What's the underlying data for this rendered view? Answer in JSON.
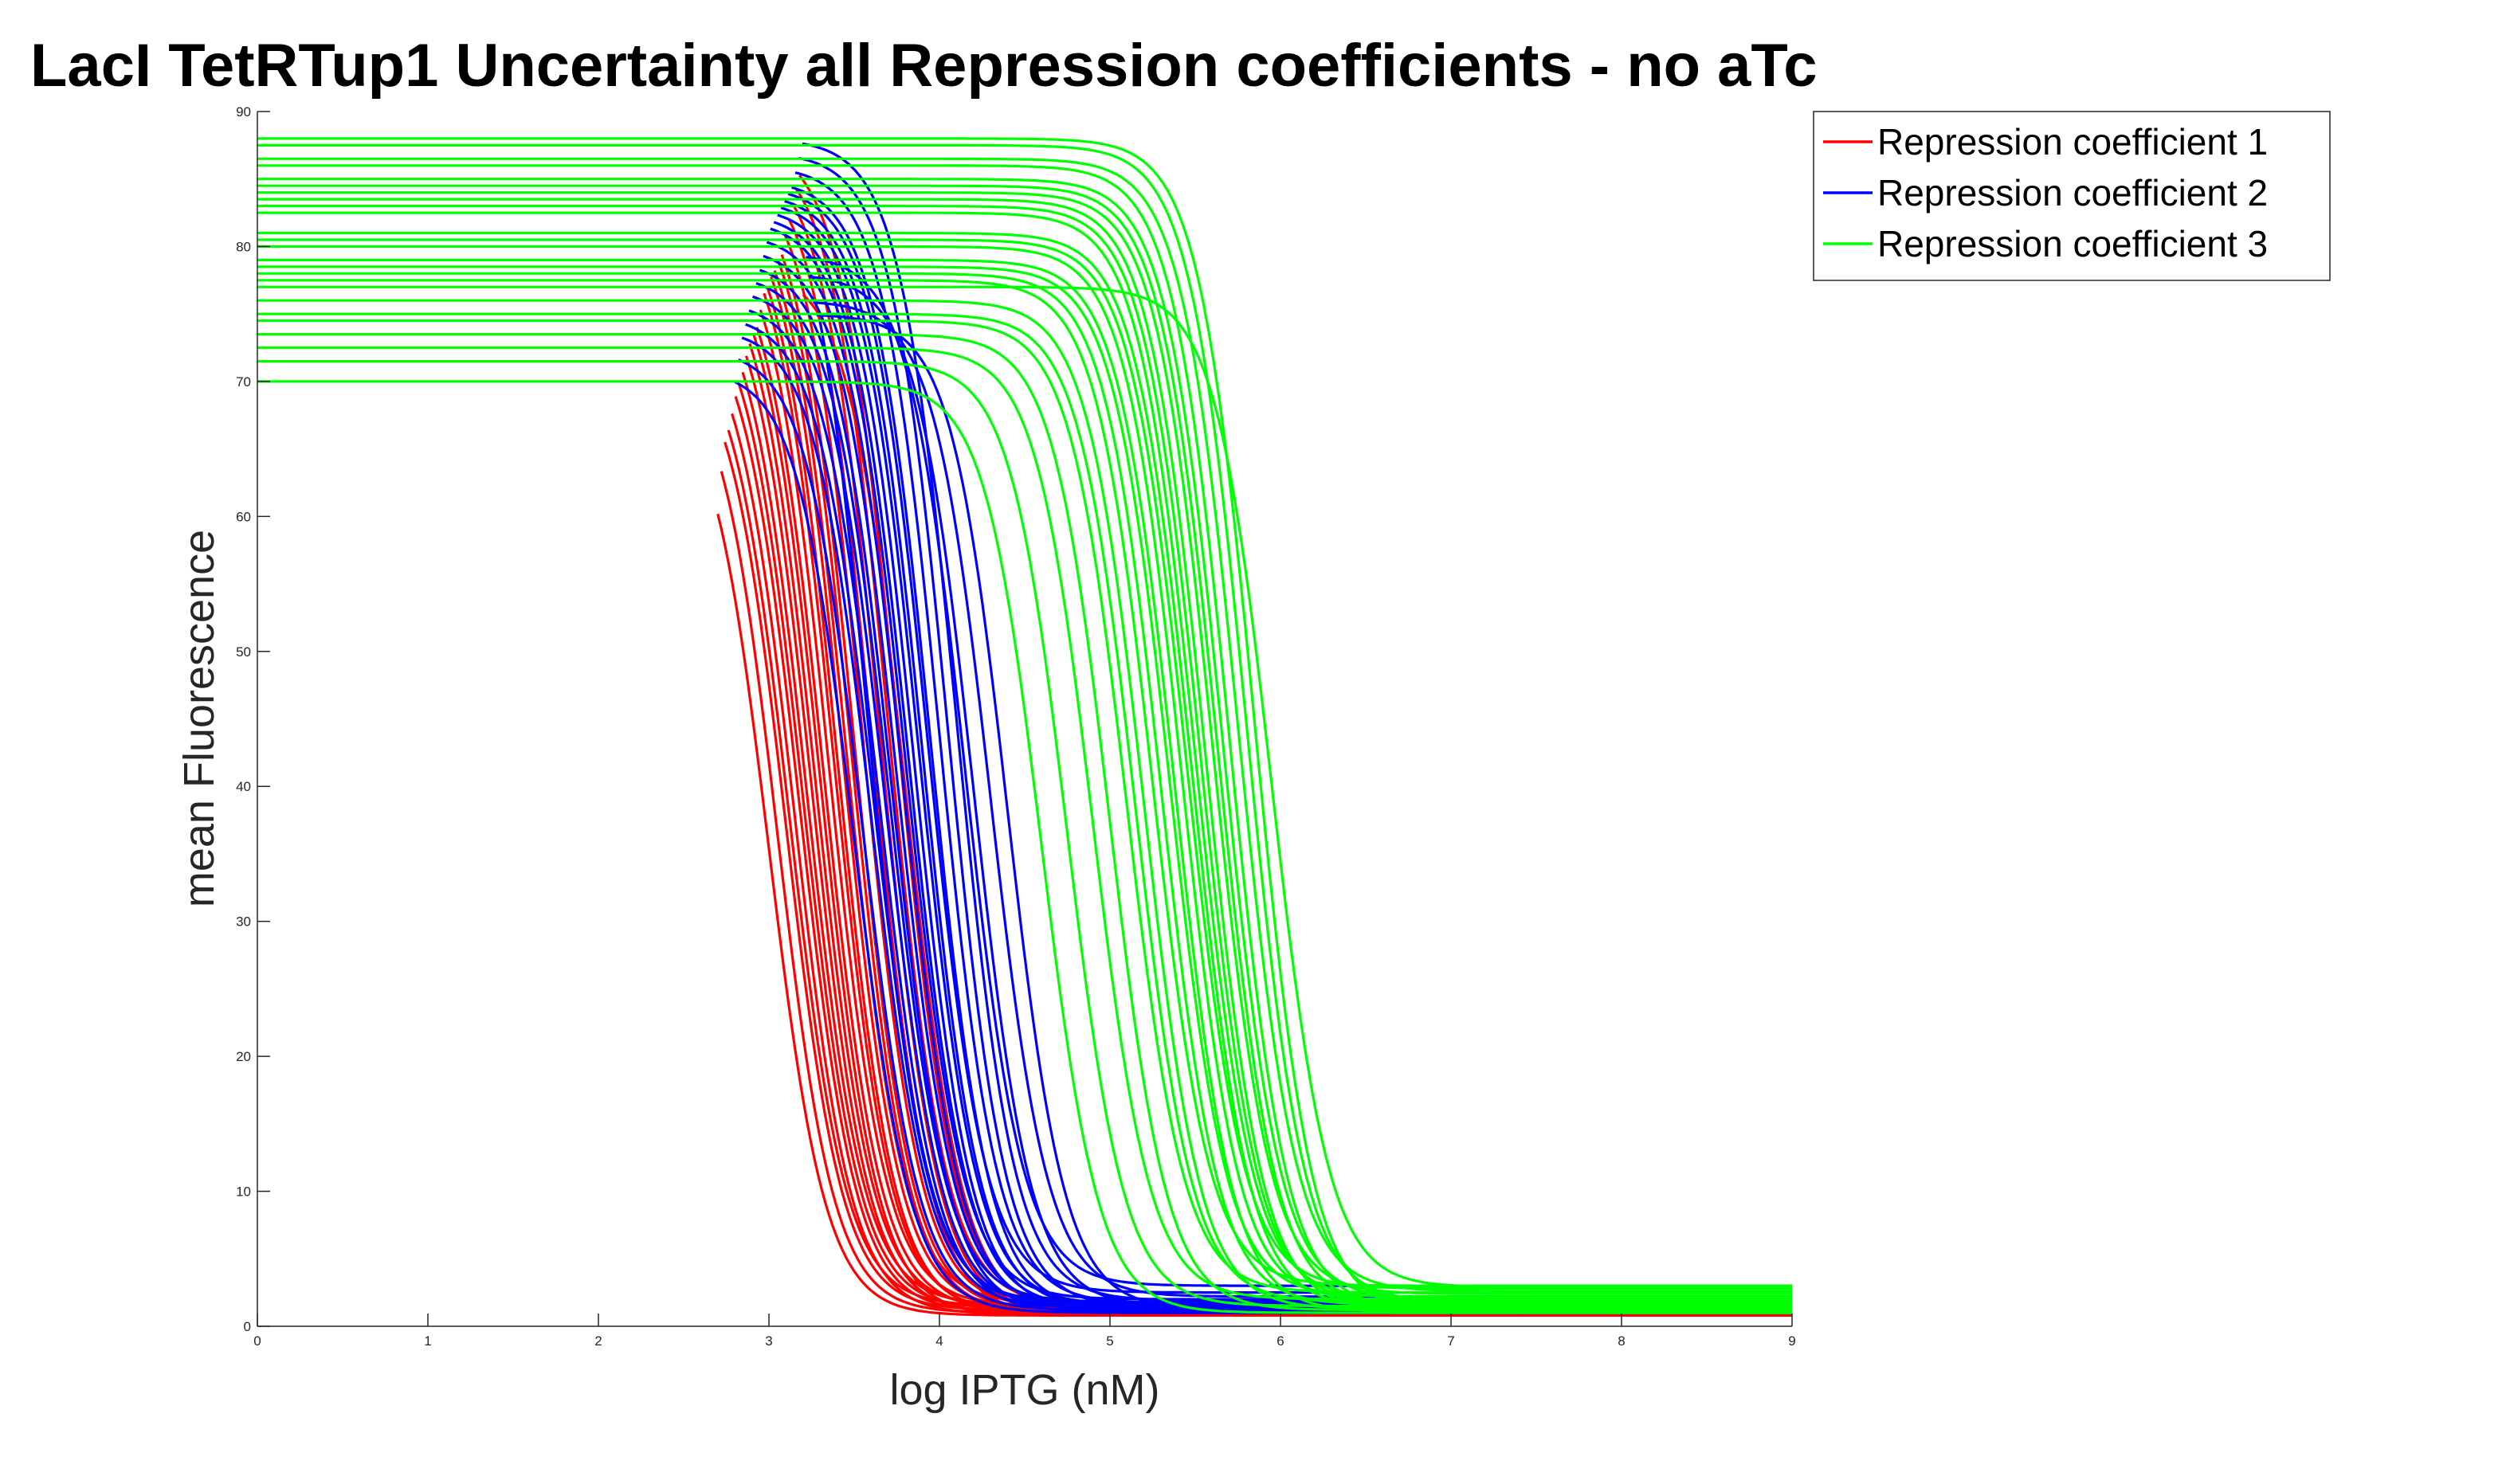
{
  "chart_data": {
    "type": "line",
    "title": "LacI TetRTup1 Uncertainty all Repression coefficients - no aTc",
    "xlabel": "log IPTG (nM)",
    "ylabel": "mean Fluorescence",
    "xlim": [
      0,
      9
    ],
    "ylim": [
      0,
      90
    ],
    "xticks": [
      "0",
      "1",
      "2",
      "3",
      "4",
      "5",
      "6",
      "7",
      "8",
      "9"
    ],
    "yticks": [
      "0",
      "10",
      "20",
      "30",
      "40",
      "50",
      "60",
      "70",
      "80",
      "90"
    ],
    "grid": false,
    "legend_position": "top-right",
    "series": [
      {
        "name": "Repression coefficient 1",
        "color": "#ff0000",
        "curve_shape": "decreasing sigmoid",
        "x_start_range": [
          2.7,
          3.2
        ],
        "midpoints": [
          3.0,
          3.05,
          3.1,
          3.12,
          3.15,
          3.18,
          3.2,
          3.22,
          3.25,
          3.27,
          3.3,
          3.32,
          3.35,
          3.38,
          3.4,
          3.43,
          3.45,
          3.48,
          3.5,
          3.55,
          3.6,
          3.65,
          3.7,
          3.75,
          3.8
        ],
        "high_values": [
          70,
          72,
          73,
          74,
          75,
          76,
          77,
          78,
          79,
          80,
          80.5,
          81,
          82,
          83,
          83.5,
          84,
          84.5,
          85,
          85.5,
          86,
          86.5,
          87,
          87.5,
          88,
          78.5
        ],
        "low_values": [
          0.8,
          1.0,
          1.2,
          1.5,
          0.9,
          1.1,
          1.3,
          1.6,
          1.0,
          1.4,
          0.8,
          1.2,
          1.5,
          1.1,
          0.9,
          1.3,
          1.7,
          1.0,
          1.2,
          1.4,
          0.9,
          1.1,
          1.6,
          1.3,
          1.0
        ]
      },
      {
        "name": "Repression coefficient 2",
        "color": "#0000ff",
        "curve_shape": "decreasing sigmoid",
        "x_start_range": [
          2.8,
          3.3
        ],
        "midpoints": [
          3.5,
          3.55,
          3.6,
          3.62,
          3.65,
          3.68,
          3.7,
          3.72,
          3.75,
          3.78,
          3.8,
          3.82,
          3.85,
          3.88,
          3.9,
          3.93,
          3.95,
          4.0,
          4.05,
          4.1,
          4.15,
          4.2,
          4.3,
          4.4,
          3.58
        ],
        "high_values": [
          71,
          72.5,
          74,
          75,
          76,
          77,
          78,
          79,
          80,
          81,
          82,
          82.5,
          83,
          83.5,
          84,
          84.5,
          85,
          86,
          87,
          88,
          79.5,
          78,
          76,
          75,
          88
        ],
        "low_values": [
          1.0,
          1.2,
          1.4,
          1.6,
          1.1,
          1.3,
          1.8,
          1.0,
          1.5,
          1.2,
          2.0,
          1.4,
          1.1,
          1.6,
          1.3,
          2.5,
          1.2,
          1.7,
          1.4,
          1.9,
          3.0,
          1.5,
          2.2,
          1.3,
          1.8
        ]
      },
      {
        "name": "Repression coefficient 3",
        "color": "#00ff00",
        "curve_shape": "decreasing sigmoid",
        "x_start_range": [
          0,
          0
        ],
        "midpoints": [
          4.6,
          4.75,
          4.9,
          5.0,
          5.1,
          5.15,
          5.2,
          5.25,
          5.3,
          5.35,
          5.38,
          5.42,
          5.45,
          5.48,
          5.5,
          5.53,
          5.56,
          5.6,
          5.63,
          5.66,
          5.7,
          5.75,
          5.8,
          5.85,
          5.95
        ],
        "high_values": [
          70,
          71.5,
          72.5,
          73.5,
          74.5,
          75,
          76,
          77.5,
          78,
          78.5,
          79,
          80,
          80.5,
          81,
          82.5,
          83,
          83.5,
          84,
          84.5,
          85,
          86,
          86.5,
          87.5,
          88,
          77
        ],
        "low_values": [
          1.0,
          1.5,
          2.0,
          1.2,
          2.5,
          1.8,
          1.3,
          3.0,
          1.6,
          2.2,
          1.1,
          1.9,
          2.8,
          1.4,
          2.1,
          1.7,
          1.2,
          2.4,
          1.5,
          2.0,
          1.3,
          2.6,
          1.8,
          1.0,
          2.9
        ]
      }
    ]
  }
}
